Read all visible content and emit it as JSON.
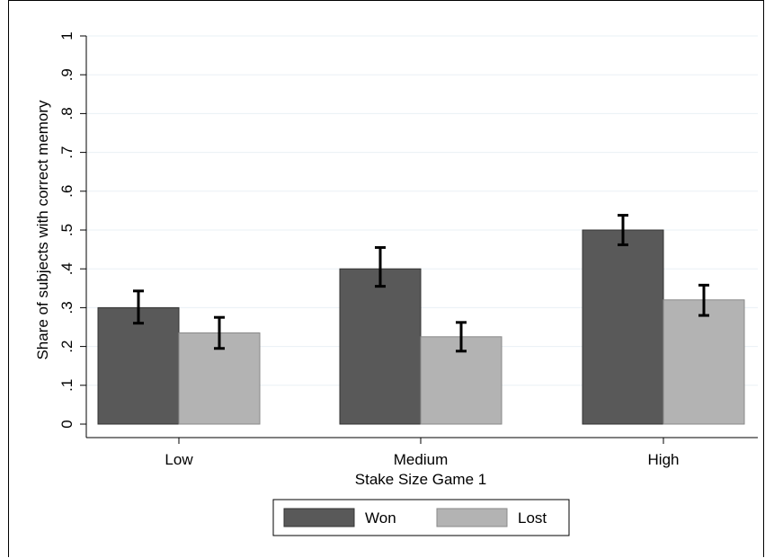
{
  "chart_data": {
    "type": "bar",
    "categories": [
      "Low",
      "Medium",
      "High"
    ],
    "series": [
      {
        "name": "Won",
        "values": [
          0.3,
          0.4,
          0.5
        ],
        "ci_low": [
          0.26,
          0.355,
          0.462
        ],
        "ci_high": [
          0.343,
          0.455,
          0.538
        ],
        "color": "#595959"
      },
      {
        "name": "Lost",
        "values": [
          0.235,
          0.225,
          0.32
        ],
        "ci_low": [
          0.195,
          0.188,
          0.28
        ],
        "ci_high": [
          0.275,
          0.262,
          0.358
        ],
        "color": "#b3b3b3"
      }
    ],
    "title": "",
    "xlabel": "Stake Size Game 1",
    "ylabel": "Share of subjects with correct memory",
    "ylim": [
      0,
      1
    ],
    "yticks": [
      0,
      0.1,
      0.2,
      0.3,
      0.4,
      0.5,
      0.6,
      0.7,
      0.8,
      0.9,
      1
    ],
    "ytick_labels": [
      "0",
      ".1",
      ".2",
      ".3",
      ".4",
      ".5",
      ".6",
      ".7",
      ".8",
      ".9",
      "1"
    ],
    "grid": true,
    "legend_position": "bottom"
  }
}
